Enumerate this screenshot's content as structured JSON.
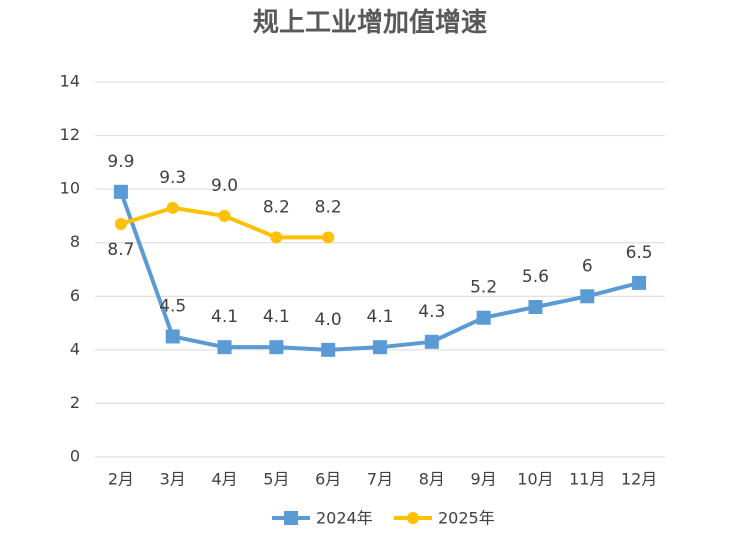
{
  "chart_data": {
    "type": "line",
    "title": "规上工业增加值增速",
    "categories": [
      "2月",
      "3月",
      "4月",
      "5月",
      "6月",
      "7月",
      "8月",
      "9月",
      "10月",
      "11月",
      "12月"
    ],
    "series": [
      {
        "name": "2024年",
        "color": "#5b9bd5",
        "marker": "square",
        "values": [
          9.9,
          4.5,
          4.1,
          4.1,
          4.0,
          4.1,
          4.3,
          5.2,
          5.6,
          6,
          6.5
        ],
        "value_labels": [
          "9.9",
          "4.5",
          "4.1",
          "4.1",
          "4.0",
          "4.1",
          "4.3",
          "5.2",
          "5.6",
          "6",
          "6.5"
        ]
      },
      {
        "name": "2025年",
        "color": "#ffc000",
        "marker": "circle",
        "values": [
          8.7,
          9.3,
          9.0,
          8.2,
          8.2,
          null,
          null,
          null,
          null,
          null,
          null
        ],
        "value_labels": [
          "8.7",
          "9.3",
          "9.0",
          "8.2",
          "8.2",
          null,
          null,
          null,
          null,
          null,
          null
        ]
      }
    ],
    "ylim": [
      0,
      14
    ],
    "yticks": [
      0,
      2,
      4,
      6,
      8,
      10,
      12,
      14
    ],
    "grid": true,
    "legend": "bottom"
  }
}
